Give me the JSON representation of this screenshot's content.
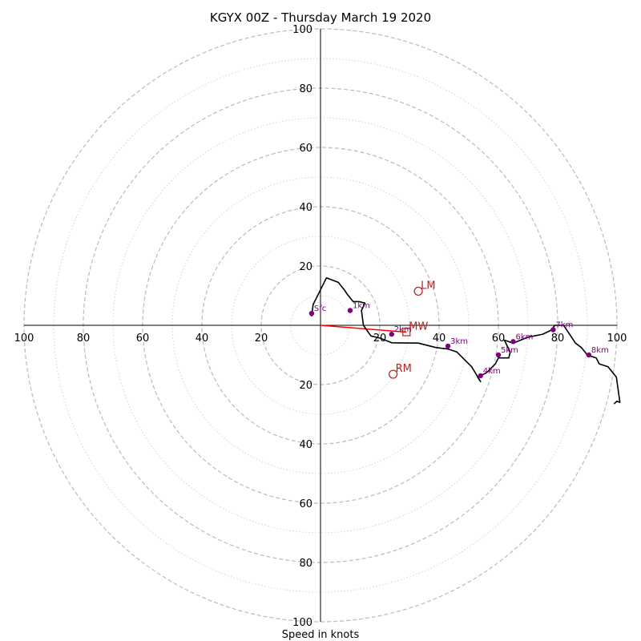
{
  "chart_data": {
    "type": "hodograph",
    "title": "KGYX 00Z - Thursday March 19 2020",
    "xlabel": "Speed in knots",
    "ring_step": 20,
    "minor_ring_step": 10,
    "range": [
      0,
      100
    ],
    "tick_labels": [
      "100",
      "80",
      "60",
      "40",
      "20",
      "20",
      "40",
      "60",
      "80",
      "100"
    ],
    "colors": {
      "trace": "#000000",
      "height_marker": "#800080",
      "motion": "#b22222",
      "shear_line": "#ff0000",
      "rings": "#bbbbbb"
    },
    "trace": {
      "u": [
        -3,
        -2.5,
        2,
        6,
        8,
        9,
        11,
        13,
        15,
        13.8,
        14.5,
        17,
        20,
        24,
        33,
        39,
        43,
        46,
        51,
        54,
        53,
        56,
        59,
        60,
        63.5,
        64,
        62,
        65,
        70,
        75,
        78,
        79,
        82,
        84,
        86,
        88,
        90,
        93,
        94,
        97,
        99.8,
        101,
        100,
        99
      ],
      "v": [
        3,
        7,
        16,
        14.5,
        12,
        10.5,
        8,
        8,
        7.5,
        5,
        0,
        -3.6,
        -4.3,
        -5.9,
        -6,
        -7.5,
        -8,
        -9,
        -14,
        -19,
        -17.5,
        -16,
        -13,
        -11,
        -11,
        -9,
        -5,
        -6,
        -4,
        -3,
        -1.5,
        0,
        0,
        -3,
        -6,
        -7.5,
        -10,
        -11,
        -13,
        -14,
        -17.5,
        -26,
        -25.6,
        -26.5
      ]
    },
    "height_markers": [
      {
        "label": "Sfc",
        "u": -3,
        "v": 4
      },
      {
        "label": "1km",
        "u": 10,
        "v": 5
      },
      {
        "label": "2km",
        "u": 24,
        "v": -3
      },
      {
        "label": "3km",
        "u": 43,
        "v": -7
      },
      {
        "label": "4km",
        "u": 54,
        "v": -17
      },
      {
        "label": "5km",
        "u": 60,
        "v": -10
      },
      {
        "label": "6km",
        "u": 65,
        "v": -5.5
      },
      {
        "label": "7km",
        "u": 78.5,
        "v": -1.5
      },
      {
        "label": "8km",
        "u": 90.5,
        "v": -10
      }
    ],
    "storm_motions": [
      {
        "label": "LM",
        "marker": "circle",
        "u": 33,
        "v": 11.5
      },
      {
        "label": "MW",
        "marker": "square",
        "u": 29,
        "v": -2.3
      },
      {
        "label": "RM",
        "marker": "circle",
        "u": 24.5,
        "v": -16.5
      }
    ],
    "shear_vector": {
      "from": [
        0,
        0
      ],
      "to": [
        29,
        -2.3
      ]
    }
  }
}
